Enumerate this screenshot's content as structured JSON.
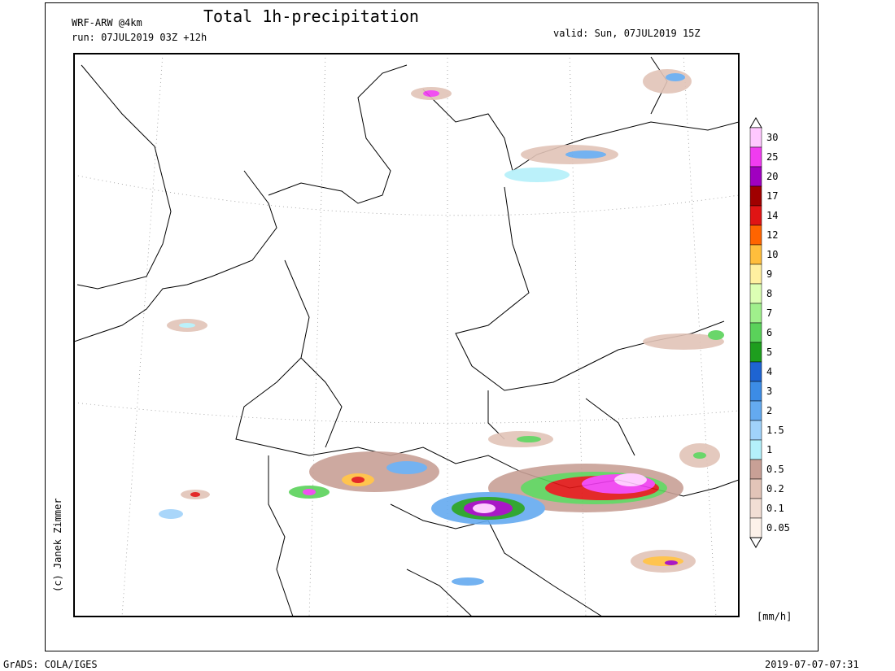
{
  "header": {
    "model": "WRF-ARW @4km",
    "title": "Total 1h-precipitation",
    "run": "run: 07JUL2019 03Z +12h",
    "valid": "valid: Sun, 07JUL2019 15Z"
  },
  "legend": {
    "levels": [
      {
        "label": "30",
        "color": "#ffc8ff"
      },
      {
        "label": "25",
        "color": "#f03cf0"
      },
      {
        "label": "20",
        "color": "#a000c0"
      },
      {
        "label": "17",
        "color": "#a00000"
      },
      {
        "label": "14",
        "color": "#e01414"
      },
      {
        "label": "12",
        "color": "#ff6400"
      },
      {
        "label": "10",
        "color": "#ffbe3c"
      },
      {
        "label": "9",
        "color": "#fff0a0"
      },
      {
        "label": "8",
        "color": "#dcffb4"
      },
      {
        "label": "7",
        "color": "#a0f08c"
      },
      {
        "label": "6",
        "color": "#5ad25a"
      },
      {
        "label": "5",
        "color": "#1e9e1e"
      },
      {
        "label": "4",
        "color": "#1e64d2"
      },
      {
        "label": "3",
        "color": "#3c8ce6"
      },
      {
        "label": "2",
        "color": "#64aaf0"
      },
      {
        "label": "1.5",
        "color": "#a0d2fa"
      },
      {
        "label": "1",
        "color": "#b4f0fa"
      },
      {
        "label": "0.5",
        "color": "#c8a096"
      },
      {
        "label": "0.2",
        "color": "#e2c4b8"
      },
      {
        "label": "0.1",
        "color": "#f2ded4"
      },
      {
        "label": "0.05",
        "color": "#fdf2ea"
      }
    ],
    "unit": "[mm/h]"
  },
  "credit": "(c) Janek Zimmer",
  "footer": {
    "left": "GrADS: COLA/IGES",
    "right": "2019-07-07-07:31"
  }
}
